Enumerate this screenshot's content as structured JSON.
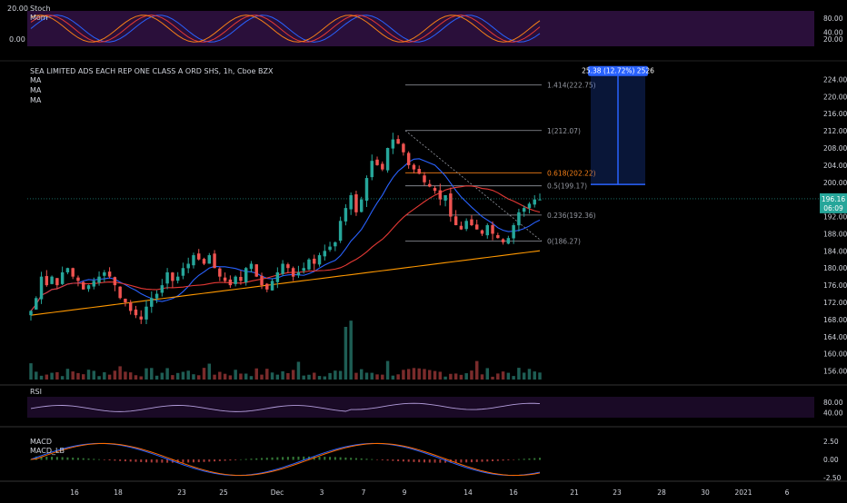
{
  "header": {
    "symbol_title": "SEA LIMITED ADS EACH REP ONE CLASS A ORD SHS, 1h, Cboe BZX",
    "ma_labels": [
      "MA",
      "MA",
      "MA"
    ]
  },
  "stoch_panel": {
    "labels": [
      "Stoch",
      "Mom"
    ],
    "left_ticks": [
      "20.00",
      "0.00"
    ],
    "right_ticks": [
      "80.00",
      "40.00",
      "20.00"
    ]
  },
  "rsi_panel": {
    "label": "RSI",
    "right_ticks": [
      "80.00",
      "40.00"
    ]
  },
  "macd_panel": {
    "labels": [
      "MACD",
      "MACD_LB"
    ],
    "right_ticks": [
      "2.50",
      "0.00",
      "-2.50"
    ]
  },
  "x_axis": {
    "labels": [
      "16",
      "18",
      "23",
      "25",
      "Dec",
      "3",
      "7",
      "9",
      "14",
      "16",
      "21",
      "23",
      "28",
      "30",
      "2021",
      "6"
    ]
  },
  "price_axis": {
    "labels": [
      "224.00",
      "220.00",
      "216.00",
      "212.00",
      "208.00",
      "204.00",
      "200.00",
      "196.00",
      "192.00",
      "188.00",
      "184.00",
      "180.00",
      "176.00",
      "172.00",
      "168.00",
      "164.00",
      "160.00",
      "156.00"
    ]
  },
  "current_price": {
    "value": "196.16",
    "countdown": "06:09"
  },
  "fib_levels": [
    {
      "ratio": "1.414",
      "price": 222.75,
      "label": "1.414(222.75)",
      "color": "#9598a1"
    },
    {
      "ratio": "1",
      "price": 212.07,
      "label": "1(212.07)",
      "color": "#9598a1"
    },
    {
      "ratio": "0.618",
      "price": 202.22,
      "label": "0.618(202.22)",
      "color": "#f57f17"
    },
    {
      "ratio": "0.5",
      "price": 199.17,
      "label": "0.5(199.17)",
      "color": "#9598a1"
    },
    {
      "ratio": "0.236",
      "price": 192.36,
      "label": "0.236(192.36)",
      "color": "#9598a1"
    },
    {
      "ratio": "0",
      "price": 186.27,
      "label": "0(186.27)",
      "color": "#9598a1"
    }
  ],
  "measure_box": {
    "label": "25.38 (12.72%) 2526",
    "from_price": 199.5,
    "to_price": 225.0,
    "color": "#2962ff"
  },
  "colors": {
    "up": "#26a69a",
    "down": "#ef5350",
    "ma_fast": "#2962ff",
    "ma_mid": "#e53935",
    "ma_slow": "#ff9800",
    "panel_bg": "#2a0f3a",
    "rsi_line": "#b39ddb"
  },
  "chart_data": {
    "type": "candlestick",
    "ylim": [
      154,
      226
    ],
    "close_prices": [
      170,
      173,
      178,
      176,
      178,
      176,
      179,
      180,
      178,
      177,
      175,
      176,
      177,
      178,
      179,
      178,
      176,
      173,
      172,
      170,
      169,
      168,
      171,
      173,
      174,
      176,
      179,
      177,
      178,
      180,
      181,
      183,
      182,
      181,
      183,
      180,
      178,
      177,
      176,
      178,
      177,
      180,
      181,
      178,
      176,
      175,
      177,
      179,
      181,
      180,
      178,
      179,
      180,
      182,
      181,
      183,
      184,
      185,
      186,
      191,
      194,
      197,
      193,
      196,
      201,
      205,
      204,
      203,
      208,
      210,
      209,
      207,
      204,
      203,
      202,
      200,
      199,
      198,
      196,
      197,
      192,
      190,
      189,
      191,
      190,
      189,
      188,
      190,
      188,
      187,
      186,
      187,
      190,
      193,
      194,
      195,
      196,
      196
    ]
  }
}
